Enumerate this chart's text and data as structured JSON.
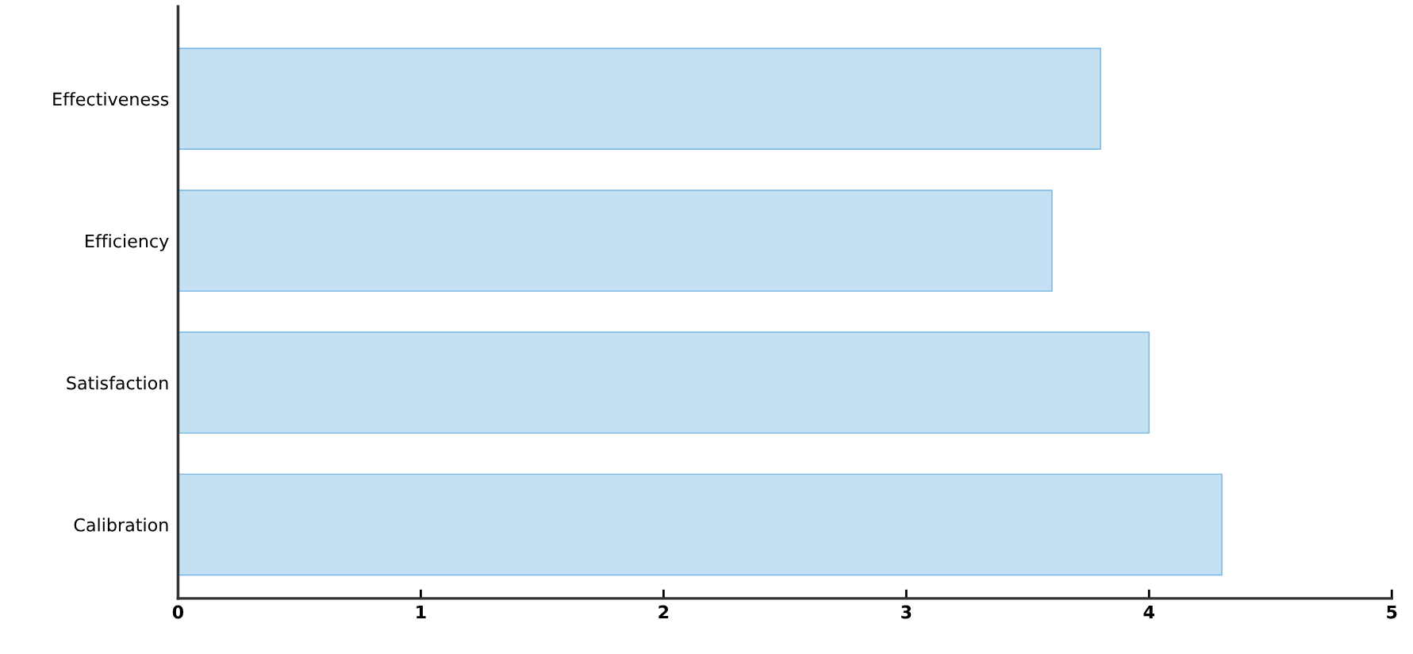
{
  "chart_data": {
    "type": "bar",
    "orientation": "horizontal",
    "categories": [
      "Effectiveness",
      "Efficiency",
      "Satisfaction",
      "Calibration"
    ],
    "values": [
      3.8,
      3.6,
      4.0,
      4.3
    ],
    "color": "#c5e0f2",
    "xlim": [
      0,
      5
    ],
    "xticks": [
      0,
      1,
      2,
      3,
      4,
      5
    ],
    "grid": false
  }
}
